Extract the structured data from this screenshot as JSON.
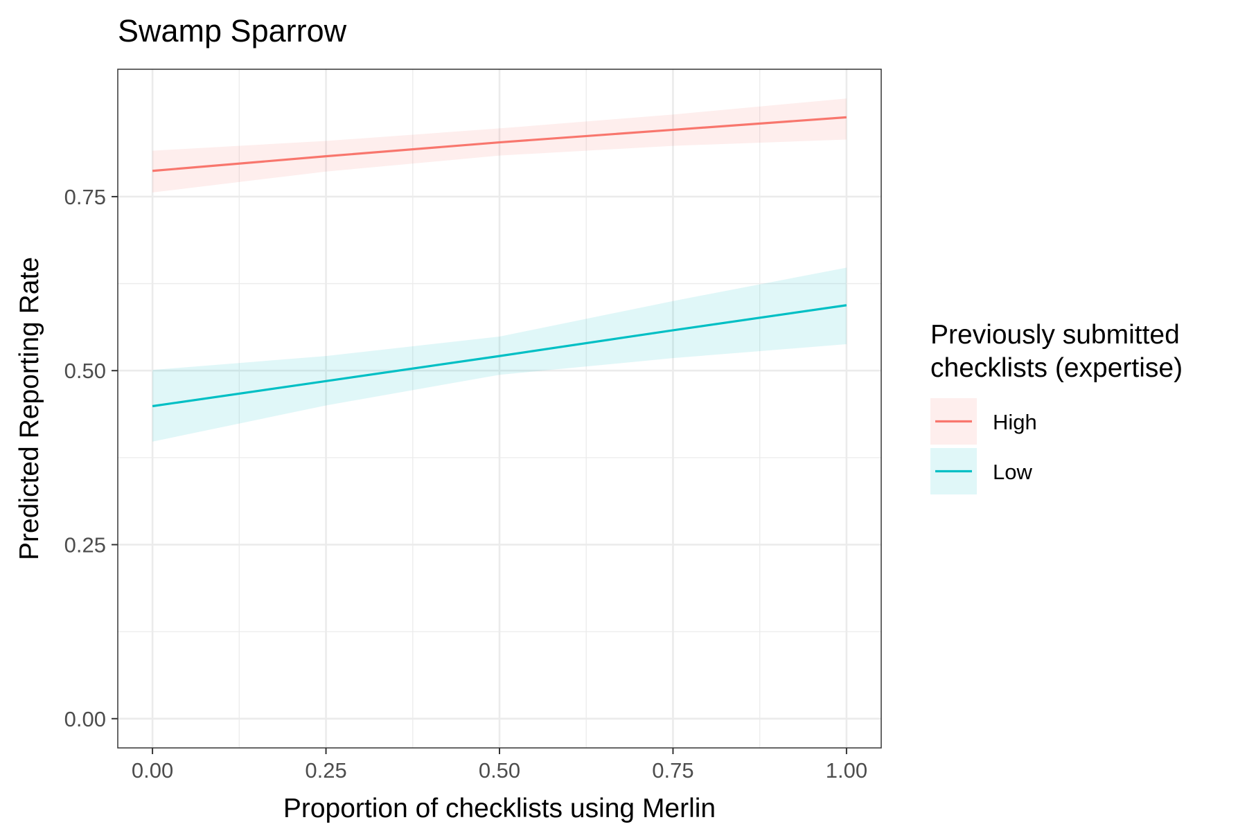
{
  "chart_data": {
    "type": "line",
    "title": "Swamp Sparrow",
    "xlabel": "Proportion of checklists using Merlin",
    "ylabel": "Predicted Reporting Rate",
    "xlim": [
      -0.05,
      1.05
    ],
    "ylim": [
      -0.042,
      0.933
    ],
    "x_ticks": [
      0,
      0.25,
      0.5,
      0.75,
      1
    ],
    "x_tick_labels": [
      "0.00",
      "0.25",
      "0.50",
      "0.75",
      "1.00"
    ],
    "y_ticks": [
      0,
      0.25,
      0.5,
      0.75
    ],
    "y_tick_labels": [
      "0.00",
      "0.25",
      "0.50",
      "0.75"
    ],
    "grid": true,
    "legend": {
      "title_lines": [
        "Previously submitted",
        "checklists (expertise)"
      ],
      "placement": "right"
    },
    "series": [
      {
        "name": "High",
        "color": "#F8766D",
        "x": [
          0,
          0.25,
          0.5,
          0.75,
          1
        ],
        "y": [
          0.787,
          0.808,
          0.828,
          0.846,
          0.864
        ],
        "lower": [
          0.756,
          0.786,
          0.809,
          0.823,
          0.832
        ],
        "upper": [
          0.816,
          0.83,
          0.848,
          0.868,
          0.891
        ]
      },
      {
        "name": "Low",
        "color": "#00BFC4",
        "x": [
          0,
          0.25,
          0.5,
          0.75,
          1
        ],
        "y": [
          0.449,
          0.485,
          0.521,
          0.558,
          0.594
        ],
        "lower": [
          0.398,
          0.45,
          0.494,
          0.518,
          0.538
        ],
        "upper": [
          0.501,
          0.521,
          0.549,
          0.6,
          0.648
        ]
      }
    ]
  }
}
